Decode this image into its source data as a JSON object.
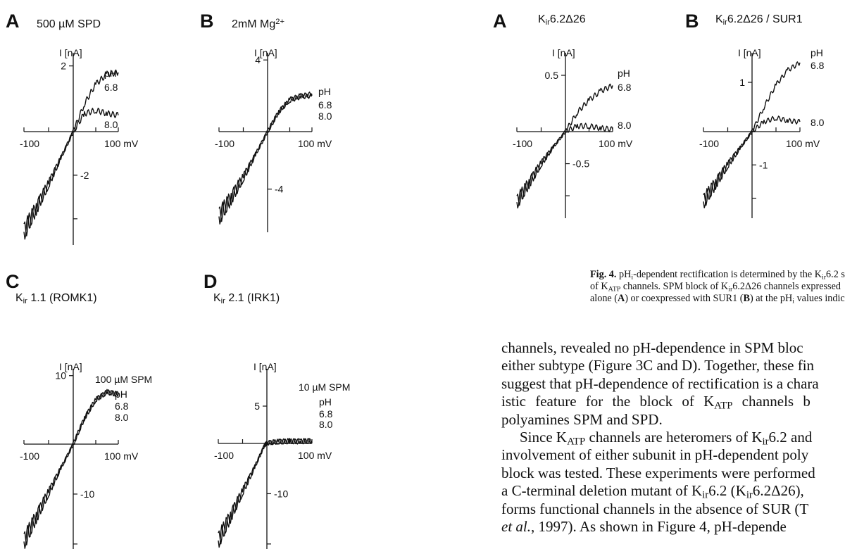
{
  "figure3": {
    "panels": [
      {
        "letter": "A",
        "condition": "500 µM SPD",
        "ylabel": "I [nA]",
        "xticks": [
          "-100",
          "100 mV"
        ],
        "ytick_pos": "2",
        "ytick_neg": "-2",
        "legend_title": "pH",
        "legend": [
          "6.8",
          "8.0"
        ],
        "block_label": ""
      },
      {
        "letter": "B",
        "condition": "2mM Mg²⁺",
        "ylabel": "I [nA]",
        "xticks": [
          "-100",
          "100 mV"
        ],
        "ytick_pos": "4",
        "ytick_neg": "-4",
        "legend_title": "pH",
        "legend": [
          "6.8",
          "8.0"
        ],
        "block_label": ""
      },
      {
        "letter": "C",
        "condition": "Kir 1.1 (ROMK1)",
        "ylabel": "I [nA]",
        "xticks": [
          "-100",
          "100 mV"
        ],
        "ytick_pos": "10",
        "ytick_neg": "-10",
        "legend_title": "pH",
        "legend": [
          "6.8",
          "8.0"
        ],
        "block_label": "100 µM SPM"
      },
      {
        "letter": "D",
        "condition": "Kir 2.1 (IRK1)",
        "ylabel": "I [nA]",
        "xticks": [
          "-100",
          "100 mV"
        ],
        "ytick_pos": "5",
        "ytick_neg": "-10",
        "legend_title": "pH",
        "legend": [
          "6.8",
          "8.0"
        ],
        "block_label": "10 µM SPM"
      }
    ]
  },
  "figure4": {
    "panels": [
      {
        "letter": "A",
        "condition": "Kir6.2Δ26",
        "ylabel": "I [nA]",
        "xticks": [
          "-100",
          "100 mV"
        ],
        "ytick_pos": "0.5",
        "ytick_neg": "-0.5",
        "legend_title": "pH",
        "legend": [
          "6.8",
          "8.0"
        ]
      },
      {
        "letter": "B",
        "condition": "Kir6.2Δ26 / SUR1",
        "ylabel": "I [nA]",
        "xticks": [
          "-100",
          "100 mV"
        ],
        "ytick_pos": "1",
        "ytick_neg": "-1",
        "legend_title": "pH",
        "legend": [
          "6.8",
          "8.0"
        ]
      }
    ],
    "caption": {
      "label": "Fig. 4.",
      "line1": "pHi-dependent rectification is determined by the Kir6.2 s",
      "line2": "of KATP channels. SPM block of Kir6.2Δ26 channels expressed",
      "line3": "alone (A) or coexpressed with SUR1 (B) at the pHi values indic"
    }
  },
  "chart_data": [
    {
      "type": "line",
      "title": "A 500 µM SPD",
      "xlabel": "mV",
      "ylabel": "I [nA]",
      "xlim": [
        -100,
        100
      ],
      "ylim": [
        -5.2,
        2.4
      ],
      "series": [
        {
          "name": "pH 6.8",
          "x": [
            -100,
            -75,
            -50,
            -25,
            0,
            25,
            50,
            75,
            100
          ],
          "y": [
            -4.6,
            -3.5,
            -2.4,
            -1.2,
            0,
            0.85,
            1.45,
            1.75,
            1.8
          ]
        },
        {
          "name": "pH 8.0",
          "x": [
            -100,
            -75,
            -50,
            -25,
            0,
            25,
            50,
            75,
            100
          ],
          "y": [
            -4.6,
            -3.5,
            -2.4,
            -1.2,
            0,
            0.55,
            0.65,
            0.55,
            0.5
          ]
        }
      ]
    },
    {
      "type": "line",
      "title": "B 2mM Mg²⁺",
      "xlabel": "mV",
      "ylabel": "I [nA]",
      "xlim": [
        -100,
        100
      ],
      "ylim": [
        -7,
        4.4
      ],
      "series": [
        {
          "name": "pH 6.8",
          "x": [
            -100,
            -75,
            -50,
            -25,
            0,
            25,
            50,
            75,
            100
          ],
          "y": [
            -5.9,
            -4.6,
            -3.2,
            -1.6,
            0,
            1.1,
            1.8,
            2.0,
            2.1
          ]
        },
        {
          "name": "pH 8.0",
          "x": [
            -100,
            -75,
            -50,
            -25,
            0,
            25,
            50,
            75,
            100
          ],
          "y": [
            -5.9,
            -4.6,
            -3.2,
            -1.6,
            0,
            1.1,
            1.75,
            1.95,
            2.0
          ]
        }
      ]
    },
    {
      "type": "line",
      "title": "C Kir 1.1 (ROMK1) 100 µM SPM",
      "xlabel": "mV",
      "ylabel": "I [nA]",
      "xlim": [
        -100,
        100
      ],
      "ylim": [
        -21,
        11
      ],
      "series": [
        {
          "name": "pH 6.8",
          "x": [
            -100,
            -75,
            -50,
            -25,
            0,
            25,
            50,
            75,
            100
          ],
          "y": [
            -19.5,
            -14.5,
            -9.7,
            -4.8,
            0,
            3.8,
            6.5,
            7.6,
            7.3
          ]
        },
        {
          "name": "pH 8.0",
          "x": [
            -100,
            -75,
            -50,
            -25,
            0,
            25,
            50,
            75,
            100
          ],
          "y": [
            -19.5,
            -14.5,
            -9.7,
            -4.8,
            0,
            3.8,
            6.5,
            7.6,
            7.3
          ]
        }
      ]
    },
    {
      "type": "line",
      "title": "D Kir 2.1 (IRK1) 10 µM SPM",
      "xlabel": "mV",
      "ylabel": "I [nA]",
      "xlim": [
        -100,
        100
      ],
      "ylim": [
        -21,
        10
      ],
      "series": [
        {
          "name": "pH 6.8",
          "x": [
            -100,
            -75,
            -50,
            -25,
            -5,
            0,
            25,
            50,
            75,
            100
          ],
          "y": [
            -19.3,
            -14.5,
            -9.6,
            -4.7,
            -0.4,
            0,
            0.25,
            0.3,
            0.3,
            0.35
          ]
        },
        {
          "name": "pH 8.0",
          "x": [
            -100,
            -75,
            -50,
            -25,
            -5,
            0,
            25,
            50,
            75,
            100
          ],
          "y": [
            -19.3,
            -14.5,
            -9.6,
            -4.7,
            -0.4,
            0,
            0.2,
            0.25,
            0.25,
            0.3
          ]
        }
      ]
    },
    {
      "type": "line",
      "title": "A Kir6.2Δ26",
      "xlabel": "mV",
      "ylabel": "I [nA]",
      "xlim": [
        -100,
        100
      ],
      "ylim": [
        -1.35,
        0.7
      ],
      "series": [
        {
          "name": "pH 6.8",
          "x": [
            -100,
            -75,
            -50,
            -25,
            0,
            25,
            50,
            75,
            100
          ],
          "y": [
            -1.1,
            -0.8,
            -0.5,
            -0.24,
            0,
            0.17,
            0.28,
            0.36,
            0.41
          ]
        },
        {
          "name": "pH 8.0",
          "x": [
            -100,
            -75,
            -50,
            -25,
            0,
            25,
            50,
            75,
            100
          ],
          "y": [
            -1.1,
            -0.8,
            -0.5,
            -0.24,
            0,
            0.05,
            0.05,
            0.03,
            0.02
          ]
        }
      ]
    },
    {
      "type": "line",
      "title": "B Kir6.2Δ26 / SUR1",
      "xlabel": "mV",
      "ylabel": "I [nA]",
      "xlim": [
        -100,
        100
      ],
      "ylim": [
        -2.6,
        1.6
      ],
      "series": [
        {
          "name": "pH 6.8",
          "x": [
            -100,
            -75,
            -50,
            -25,
            0,
            25,
            50,
            75,
            100
          ],
          "y": [
            -2.1,
            -1.55,
            -1.0,
            -0.5,
            0,
            0.5,
            0.95,
            1.25,
            1.4
          ]
        },
        {
          "name": "pH 8.0",
          "x": [
            -100,
            -75,
            -50,
            -25,
            0,
            25,
            50,
            75,
            100
          ],
          "y": [
            -2.1,
            -1.55,
            -1.0,
            -0.5,
            0,
            0.2,
            0.28,
            0.22,
            0.2
          ]
        }
      ]
    }
  ],
  "body": {
    "lines": [
      "channels, revealed no pH-dependence in SPM bloc",
      "either subtype (Figure 3C and D). Together, these fin",
      "suggest that pH-dependence of rectification is a chara",
      "istic feature for the block of KATP channels b",
      "polyamines SPM and SPD.",
      "Since KATP channels are heteromers of Kir6.2 and",
      "involvement of either subunit in pH-dependent poly",
      "block was tested. These experiments were performed",
      "a C-terminal deletion mutant of Kir6.2 (Kir6.2Δ26),",
      "forms functional channels in the absence of SUR (T",
      "et al., 1997). As shown in Figure 4, pH-depende"
    ]
  }
}
